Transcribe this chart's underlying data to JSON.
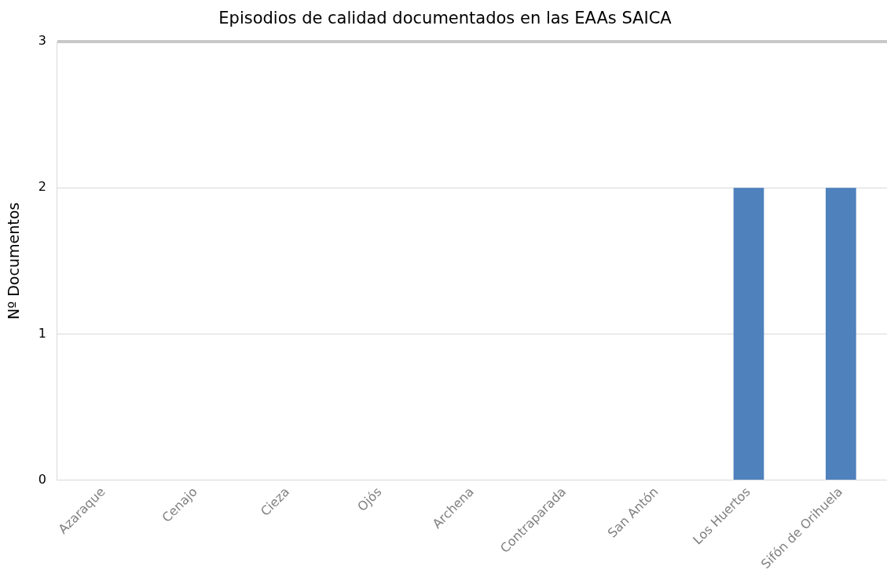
{
  "chart_data": {
    "type": "bar",
    "title": "Episodios de calidad documentados en las EAAs SAICA",
    "ylabel": "Nº Documentos",
    "categories": [
      "Azaraque",
      "Cenajo",
      "Cieza",
      "Ojós",
      "Archena",
      "Contraparada",
      "San Antón",
      "Los Huertos",
      "Sifón de Orihuela"
    ],
    "values": [
      0,
      0,
      0,
      0,
      0,
      0,
      0,
      2,
      2
    ],
    "color": "#4f81bd",
    "ylim": [
      0,
      3
    ],
    "yticks": [
      0,
      1,
      2,
      3
    ],
    "grid": "y"
  }
}
